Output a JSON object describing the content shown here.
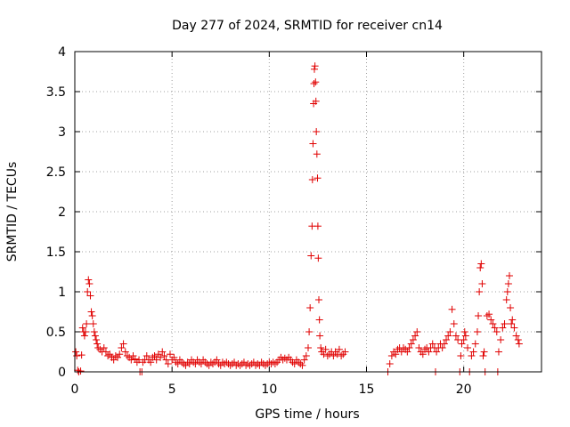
{
  "chart_data": {
    "type": "scatter",
    "title": "Day 277 of 2024, SRMTID for receiver cn14",
    "xlabel": "GPS time / hours",
    "ylabel": "SRMTID / TECUs",
    "xlim": [
      0,
      24
    ],
    "ylim": [
      0,
      4
    ],
    "xticks": [
      0,
      5,
      10,
      15,
      20
    ],
    "yticks": [
      0,
      0.5,
      1,
      1.5,
      2,
      2.5,
      3,
      3.5,
      4
    ],
    "xtick_labels": [
      "0",
      "5",
      "10",
      "15",
      "20"
    ],
    "ytick_labels": [
      "0",
      "0.5",
      "1",
      "1.5",
      "2",
      "2.5",
      "3",
      "3.5",
      "4"
    ],
    "grid": true,
    "marker": "plus",
    "series": [
      {
        "name": "cn14",
        "color": "#e00000",
        "points": [
          [
            0.05,
            0.25
          ],
          [
            0.1,
            0.2
          ],
          [
            0.15,
            0.02
          ],
          [
            0.2,
            0.0
          ],
          [
            0.3,
            0.01
          ],
          [
            0.35,
            0.21
          ],
          [
            0.4,
            0.55
          ],
          [
            0.45,
            0.5
          ],
          [
            0.5,
            0.45
          ],
          [
            0.55,
            0.5
          ],
          [
            0.6,
            0.6
          ],
          [
            0.65,
            1.0
          ],
          [
            0.7,
            1.15
          ],
          [
            0.75,
            1.1
          ],
          [
            0.8,
            0.95
          ],
          [
            0.85,
            0.75
          ],
          [
            0.9,
            0.7
          ],
          [
            0.95,
            0.6
          ],
          [
            1.0,
            0.5
          ],
          [
            1.05,
            0.45
          ],
          [
            1.1,
            0.4
          ],
          [
            1.15,
            0.35
          ],
          [
            1.2,
            0.3
          ],
          [
            1.3,
            0.28
          ],
          [
            1.4,
            0.25
          ],
          [
            1.5,
            0.3
          ],
          [
            1.6,
            0.25
          ],
          [
            1.7,
            0.2
          ],
          [
            1.8,
            0.22
          ],
          [
            1.9,
            0.18
          ],
          [
            2.0,
            0.15
          ],
          [
            2.1,
            0.2
          ],
          [
            2.2,
            0.18
          ],
          [
            2.3,
            0.22
          ],
          [
            2.4,
            0.3
          ],
          [
            2.5,
            0.35
          ],
          [
            2.6,
            0.25
          ],
          [
            2.7,
            0.2
          ],
          [
            2.8,
            0.18
          ],
          [
            2.9,
            0.15
          ],
          [
            3.0,
            0.2
          ],
          [
            3.1,
            0.16
          ],
          [
            3.2,
            0.12
          ],
          [
            3.3,
            0.15
          ],
          [
            3.35,
            0.0
          ],
          [
            3.45,
            0.0
          ],
          [
            3.5,
            0.12
          ],
          [
            3.6,
            0.15
          ],
          [
            3.7,
            0.2
          ],
          [
            3.8,
            0.15
          ],
          [
            3.9,
            0.12
          ],
          [
            4.0,
            0.18
          ],
          [
            4.1,
            0.2
          ],
          [
            4.2,
            0.15
          ],
          [
            4.3,
            0.22
          ],
          [
            4.4,
            0.18
          ],
          [
            4.5,
            0.25
          ],
          [
            4.6,
            0.2
          ],
          [
            4.7,
            0.15
          ],
          [
            4.8,
            0.1
          ],
          [
            4.9,
            0.22
          ],
          [
            5.0,
            0.15
          ],
          [
            5.1,
            0.18
          ],
          [
            5.2,
            0.12
          ],
          [
            5.3,
            0.1
          ],
          [
            5.4,
            0.15
          ],
          [
            5.5,
            0.12
          ],
          [
            5.6,
            0.1
          ],
          [
            5.7,
            0.08
          ],
          [
            5.8,
            0.12
          ],
          [
            5.9,
            0.1
          ],
          [
            6.0,
            0.15
          ],
          [
            6.1,
            0.12
          ],
          [
            6.2,
            0.1
          ],
          [
            6.3,
            0.15
          ],
          [
            6.4,
            0.12
          ],
          [
            6.5,
            0.1
          ],
          [
            6.6,
            0.15
          ],
          [
            6.7,
            0.12
          ],
          [
            6.8,
            0.1
          ],
          [
            6.9,
            0.08
          ],
          [
            7.0,
            0.12
          ],
          [
            7.1,
            0.1
          ],
          [
            7.2,
            0.12
          ],
          [
            7.3,
            0.15
          ],
          [
            7.4,
            0.1
          ],
          [
            7.5,
            0.08
          ],
          [
            7.6,
            0.12
          ],
          [
            7.7,
            0.1
          ],
          [
            7.8,
            0.12
          ],
          [
            7.9,
            0.1
          ],
          [
            8.0,
            0.08
          ],
          [
            8.1,
            0.1
          ],
          [
            8.2,
            0.12
          ],
          [
            8.3,
            0.08
          ],
          [
            8.4,
            0.1
          ],
          [
            8.5,
            0.08
          ],
          [
            8.6,
            0.1
          ],
          [
            8.7,
            0.12
          ],
          [
            8.8,
            0.08
          ],
          [
            8.9,
            0.1
          ],
          [
            9.0,
            0.08
          ],
          [
            9.1,
            0.1
          ],
          [
            9.2,
            0.12
          ],
          [
            9.3,
            0.08
          ],
          [
            9.4,
            0.1
          ],
          [
            9.5,
            0.08
          ],
          [
            9.6,
            0.12
          ],
          [
            9.7,
            0.1
          ],
          [
            9.8,
            0.08
          ],
          [
            9.9,
            0.1
          ],
          [
            10.0,
            0.12
          ],
          [
            10.1,
            0.1
          ],
          [
            10.2,
            0.12
          ],
          [
            10.3,
            0.1
          ],
          [
            10.4,
            0.12
          ],
          [
            10.5,
            0.15
          ],
          [
            10.6,
            0.18
          ],
          [
            10.7,
            0.15
          ],
          [
            10.8,
            0.17
          ],
          [
            10.9,
            0.15
          ],
          [
            11.0,
            0.18
          ],
          [
            11.1,
            0.15
          ],
          [
            11.2,
            0.12
          ],
          [
            11.3,
            0.1
          ],
          [
            11.4,
            0.15
          ],
          [
            11.5,
            0.12
          ],
          [
            11.6,
            0.1
          ],
          [
            11.7,
            0.08
          ],
          [
            11.8,
            0.15
          ],
          [
            11.9,
            0.2
          ],
          [
            12.0,
            0.3
          ],
          [
            12.05,
            0.5
          ],
          [
            12.1,
            0.8
          ],
          [
            12.15,
            1.45
          ],
          [
            12.2,
            1.82
          ],
          [
            12.22,
            2.4
          ],
          [
            12.25,
            2.85
          ],
          [
            12.28,
            3.35
          ],
          [
            12.3,
            3.6
          ],
          [
            12.32,
            3.78
          ],
          [
            12.35,
            3.82
          ],
          [
            12.38,
            3.62
          ],
          [
            12.4,
            3.38
          ],
          [
            12.42,
            3.0
          ],
          [
            12.45,
            2.72
          ],
          [
            12.48,
            2.42
          ],
          [
            12.5,
            1.82
          ],
          [
            12.52,
            1.42
          ],
          [
            12.55,
            0.9
          ],
          [
            12.58,
            0.65
          ],
          [
            12.6,
            0.45
          ],
          [
            12.65,
            0.3
          ],
          [
            12.7,
            0.25
          ],
          [
            12.8,
            0.22
          ],
          [
            12.9,
            0.28
          ],
          [
            13.0,
            0.2
          ],
          [
            13.1,
            0.22
          ],
          [
            13.2,
            0.25
          ],
          [
            13.3,
            0.2
          ],
          [
            13.4,
            0.25
          ],
          [
            13.5,
            0.22
          ],
          [
            13.6,
            0.28
          ],
          [
            13.7,
            0.2
          ],
          [
            13.8,
            0.22
          ],
          [
            13.9,
            0.25
          ],
          [
            16.1,
            0.0
          ],
          [
            16.2,
            0.1
          ],
          [
            16.3,
            0.2
          ],
          [
            16.4,
            0.25
          ],
          [
            16.5,
            0.22
          ],
          [
            16.6,
            0.28
          ],
          [
            16.7,
            0.3
          ],
          [
            16.8,
            0.25
          ],
          [
            16.9,
            0.3
          ],
          [
            17.0,
            0.28
          ],
          [
            17.1,
            0.25
          ],
          [
            17.2,
            0.3
          ],
          [
            17.3,
            0.35
          ],
          [
            17.4,
            0.4
          ],
          [
            17.5,
            0.45
          ],
          [
            17.6,
            0.5
          ],
          [
            17.7,
            0.3
          ],
          [
            17.8,
            0.25
          ],
          [
            17.9,
            0.22
          ],
          [
            18.0,
            0.28
          ],
          [
            18.1,
            0.3
          ],
          [
            18.2,
            0.25
          ],
          [
            18.3,
            0.3
          ],
          [
            18.4,
            0.35
          ],
          [
            18.5,
            0.3
          ],
          [
            18.55,
            0.0
          ],
          [
            18.6,
            0.25
          ],
          [
            18.7,
            0.3
          ],
          [
            18.8,
            0.35
          ],
          [
            18.9,
            0.3
          ],
          [
            19.0,
            0.35
          ],
          [
            19.1,
            0.4
          ],
          [
            19.2,
            0.45
          ],
          [
            19.3,
            0.5
          ],
          [
            19.4,
            0.78
          ],
          [
            19.5,
            0.6
          ],
          [
            19.6,
            0.45
          ],
          [
            19.7,
            0.4
          ],
          [
            19.8,
            0.0
          ],
          [
            19.85,
            0.2
          ],
          [
            19.9,
            0.35
          ],
          [
            20.0,
            0.4
          ],
          [
            20.05,
            0.5
          ],
          [
            20.1,
            0.45
          ],
          [
            20.2,
            0.3
          ],
          [
            20.3,
            0.0
          ],
          [
            20.4,
            0.2
          ],
          [
            20.5,
            0.25
          ],
          [
            20.6,
            0.35
          ],
          [
            20.7,
            0.5
          ],
          [
            20.75,
            0.7
          ],
          [
            20.8,
            1.0
          ],
          [
            20.85,
            1.3
          ],
          [
            20.9,
            1.35
          ],
          [
            20.95,
            1.1
          ],
          [
            21.0,
            0.2
          ],
          [
            21.05,
            0.25
          ],
          [
            21.1,
            0.0
          ],
          [
            21.2,
            0.7
          ],
          [
            21.3,
            0.72
          ],
          [
            21.4,
            0.65
          ],
          [
            21.5,
            0.6
          ],
          [
            21.6,
            0.55
          ],
          [
            21.7,
            0.5
          ],
          [
            21.75,
            0.0
          ],
          [
            21.8,
            0.25
          ],
          [
            21.9,
            0.4
          ],
          [
            22.0,
            0.55
          ],
          [
            22.1,
            0.6
          ],
          [
            22.2,
            0.9
          ],
          [
            22.25,
            1.0
          ],
          [
            22.3,
            1.1
          ],
          [
            22.35,
            1.2
          ],
          [
            22.4,
            0.8
          ],
          [
            22.45,
            0.6
          ],
          [
            22.5,
            0.65
          ],
          [
            22.6,
            0.55
          ],
          [
            22.7,
            0.45
          ],
          [
            22.8,
            0.4
          ],
          [
            22.85,
            0.35
          ]
        ]
      }
    ]
  }
}
